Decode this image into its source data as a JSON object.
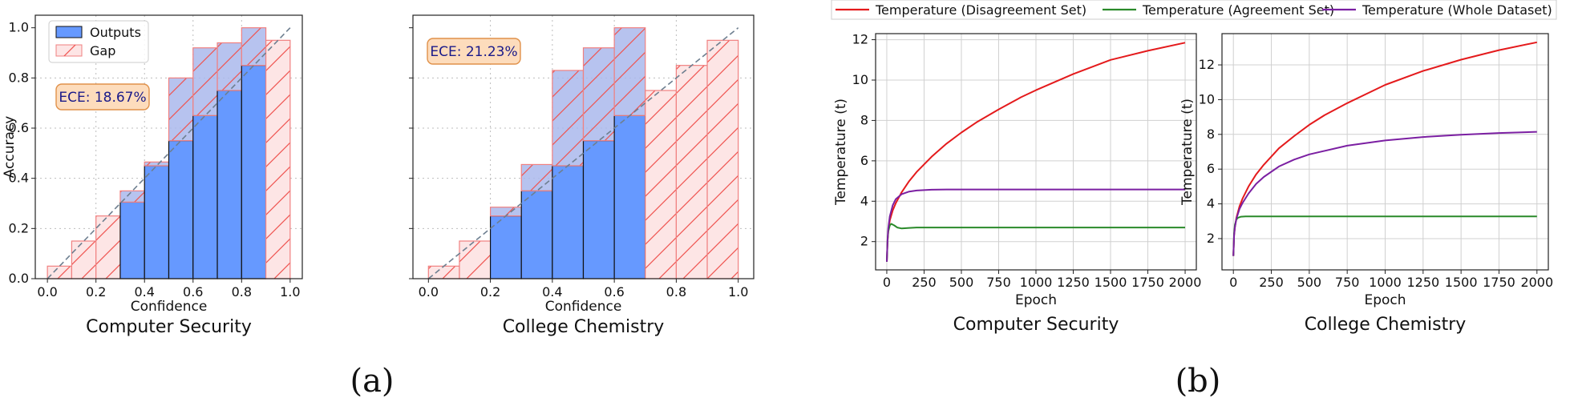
{
  "panel_labels": {
    "a": "(a)",
    "b": "(b)"
  },
  "colors": {
    "outputs_fill": "#6699ff",
    "gap_fill": "#fde5e5",
    "gap_edge": "#f08080",
    "overlay_fill": "#aab8ec",
    "diagonal": "#6e7f90",
    "ece_box_fill": "#fddcbc",
    "ece_box_edge": "#e0914a",
    "disagreement": "#e41a1c",
    "agreement": "#2a8a2a",
    "whole": "#7b1fa2"
  },
  "legend_b": {
    "disagreement": "Temperature (Disagreement Set)",
    "agreement": "Temperature (Agreement Set)",
    "whole": "Temperature (Whole Dataset)"
  },
  "chart_data": [
    {
      "type": "bar",
      "subtitle": "Computer Security",
      "xlabel": "Confidence",
      "ylabel": "Accuracy",
      "xlim": [
        -0.05,
        1.05
      ],
      "ylim": [
        0,
        1.05
      ],
      "xticks": [
        "0.0",
        "0.2",
        "0.4",
        "0.6",
        "0.8",
        "1.0"
      ],
      "yticks": [
        "0.0",
        "0.2",
        "0.4",
        "0.6",
        "0.8",
        "1.0"
      ],
      "legend": {
        "outputs": "Outputs",
        "gap": "Gap"
      },
      "legend_position": "top-left",
      "grid": true,
      "ece_label": "ECE: 18.67%",
      "bins": [
        {
          "x0": 0.0,
          "outputs": 0.0,
          "gap_top": 0.05
        },
        {
          "x0": 0.1,
          "outputs": 0.0,
          "gap_top": 0.15
        },
        {
          "x0": 0.2,
          "outputs": 0.0,
          "gap_top": 0.25
        },
        {
          "x0": 0.3,
          "outputs": 0.305,
          "gap_top": 0.35
        },
        {
          "x0": 0.4,
          "outputs": 0.45,
          "gap_top": 0.465
        },
        {
          "x0": 0.5,
          "outputs": 0.55,
          "gap_top": 0.8
        },
        {
          "x0": 0.6,
          "outputs": 0.65,
          "gap_top": 0.92
        },
        {
          "x0": 0.7,
          "outputs": 0.75,
          "gap_top": 0.94
        },
        {
          "x0": 0.8,
          "outputs": 0.85,
          "gap_top": 1.0
        },
        {
          "x0": 0.9,
          "outputs": 0.0,
          "gap_top": 0.95
        }
      ]
    },
    {
      "type": "bar",
      "subtitle": "College Chemistry",
      "xlabel": "Confidence",
      "ylabel": "",
      "xlim": [
        -0.05,
        1.05
      ],
      "ylim": [
        0,
        1.05
      ],
      "xticks": [
        "0.0",
        "0.2",
        "0.4",
        "0.6",
        "0.8",
        "1.0"
      ],
      "grid": true,
      "ece_label": "ECE: 21.23%",
      "bins": [
        {
          "x0": 0.0,
          "outputs": 0.0,
          "gap_top": 0.05
        },
        {
          "x0": 0.1,
          "outputs": 0.0,
          "gap_top": 0.15
        },
        {
          "x0": 0.2,
          "outputs": 0.25,
          "gap_top": 0.285
        },
        {
          "x0": 0.3,
          "outputs": 0.35,
          "gap_top": 0.455
        },
        {
          "x0": 0.4,
          "outputs": 0.45,
          "gap_top": 0.83
        },
        {
          "x0": 0.5,
          "outputs": 0.55,
          "gap_top": 0.92
        },
        {
          "x0": 0.6,
          "outputs": 0.65,
          "gap_top": 1.0
        },
        {
          "x0": 0.7,
          "outputs": 0.0,
          "gap_top": 0.75
        },
        {
          "x0": 0.8,
          "outputs": 0.0,
          "gap_top": 0.85
        },
        {
          "x0": 0.9,
          "outputs": 0.0,
          "gap_top": 0.95
        }
      ]
    },
    {
      "type": "line",
      "subtitle": "Computer Security",
      "xlabel": "Epoch",
      "ylabel": "Temperature (t)",
      "xlim": [
        -75,
        2075
      ],
      "ylim": [
        0.6,
        12.3
      ],
      "xticks": [
        0,
        250,
        500,
        750,
        1000,
        1250,
        1500,
        1750,
        2000
      ],
      "yticks": [
        2,
        4,
        6,
        8,
        10,
        12
      ],
      "grid": true,
      "series": [
        {
          "key": "disagreement",
          "x": [
            0,
            5,
            10,
            20,
            40,
            60,
            100,
            150,
            200,
            300,
            400,
            500,
            600,
            750,
            900,
            1000,
            1250,
            1500,
            1750,
            2000
          ],
          "y": [
            1.0,
            2.0,
            2.5,
            3.05,
            3.55,
            3.9,
            4.45,
            5.0,
            5.45,
            6.2,
            6.85,
            7.4,
            7.9,
            8.55,
            9.15,
            9.5,
            10.3,
            11.0,
            11.45,
            11.85
          ]
        },
        {
          "key": "agreement",
          "x": [
            0,
            5,
            10,
            20,
            30,
            50,
            70,
            100,
            150,
            200,
            500,
            1000,
            1500,
            2000
          ],
          "y": [
            1.0,
            2.05,
            2.5,
            2.8,
            2.88,
            2.8,
            2.7,
            2.65,
            2.68,
            2.7,
            2.7,
            2.7,
            2.7,
            2.7
          ]
        },
        {
          "key": "whole",
          "x": [
            0,
            5,
            10,
            20,
            40,
            60,
            100,
            150,
            200,
            300,
            400,
            500,
            750,
            1000,
            1500,
            2000
          ],
          "y": [
            1.0,
            2.1,
            2.65,
            3.25,
            3.8,
            4.1,
            4.35,
            4.48,
            4.53,
            4.57,
            4.58,
            4.58,
            4.58,
            4.58,
            4.58,
            4.58
          ]
        }
      ]
    },
    {
      "type": "line",
      "subtitle": "College Chemistry",
      "xlabel": "Epoch",
      "ylabel": "Temperature (t)",
      "xlim": [
        -75,
        2075
      ],
      "ylim": [
        0.2,
        13.8
      ],
      "xticks": [
        0,
        250,
        500,
        750,
        1000,
        1250,
        1500,
        1750,
        2000
      ],
      "yticks": [
        2,
        4,
        6,
        8,
        10,
        12
      ],
      "grid": true,
      "series": [
        {
          "key": "disagreement",
          "x": [
            0,
            5,
            10,
            20,
            40,
            60,
            100,
            150,
            200,
            300,
            400,
            500,
            600,
            750,
            1000,
            1250,
            1500,
            1750,
            2000
          ],
          "y": [
            1.0,
            2.2,
            2.65,
            3.2,
            3.85,
            4.3,
            5.0,
            5.7,
            6.25,
            7.2,
            7.9,
            8.55,
            9.1,
            9.8,
            10.85,
            11.65,
            12.3,
            12.85,
            13.3
          ]
        },
        {
          "key": "agreement",
          "x": [
            0,
            5,
            10,
            20,
            30,
            50,
            80,
            120,
            200,
            500,
            1000,
            1500,
            2000
          ],
          "y": [
            1.0,
            2.3,
            2.8,
            3.1,
            3.2,
            3.26,
            3.28,
            3.28,
            3.28,
            3.28,
            3.28,
            3.28,
            3.28
          ]
        },
        {
          "key": "whole",
          "x": [
            0,
            5,
            10,
            20,
            40,
            60,
            100,
            150,
            200,
            300,
            400,
            500,
            750,
            1000,
            1250,
            1500,
            1750,
            2000
          ],
          "y": [
            1.0,
            2.2,
            2.65,
            3.15,
            3.7,
            4.05,
            4.6,
            5.15,
            5.55,
            6.15,
            6.55,
            6.85,
            7.35,
            7.65,
            7.85,
            7.98,
            8.08,
            8.15
          ]
        }
      ]
    }
  ]
}
